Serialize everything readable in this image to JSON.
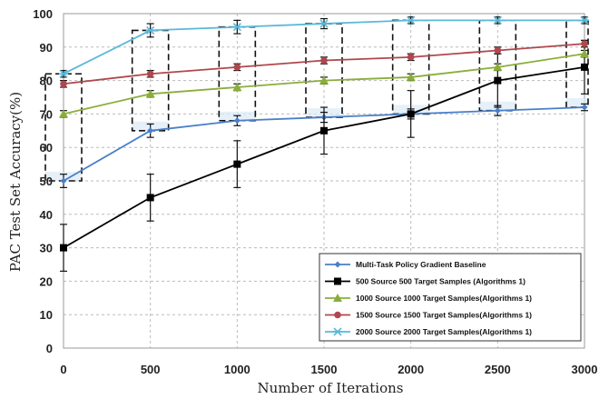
{
  "chart_data": {
    "type": "line",
    "title": "",
    "xlabel": "Number of  Iterations",
    "ylabel": "PAC  Test Set Accuracy(%)",
    "x": [
      0,
      500,
      1000,
      1500,
      2000,
      2500,
      3000
    ],
    "xlim": [
      0,
      3000
    ],
    "ylim": [
      0,
      100
    ],
    "x_ticks": [
      "0",
      "500",
      "1000",
      "1500",
      "2000",
      "2500",
      "3000"
    ],
    "y_ticks": [
      "0",
      "10",
      "20",
      "30",
      "40",
      "50",
      "60",
      "70",
      "80",
      "90",
      "100"
    ],
    "grid": true,
    "legend_position": "bottom-right",
    "series": [
      {
        "name": "Multi-Task Policy Gradient Baseline",
        "color": "#4a7fc8",
        "marker": "diamond",
        "values": [
          50,
          65,
          68,
          69,
          70,
          71,
          72
        ],
        "error": [
          2,
          2,
          1.5,
          1.5,
          1.5,
          1.5,
          1
        ]
      },
      {
        "name": "500 Source 500 Target Samples (Algorithms 1)",
        "color": "#000000",
        "marker": "square",
        "values": [
          30,
          45,
          55,
          65,
          70,
          80,
          84
        ],
        "error": [
          7,
          7,
          7,
          7,
          7,
          8,
          8
        ]
      },
      {
        "name": "1000 Source 1000 Target Samples(Algorithms 1)",
        "color": "#8aae3b",
        "marker": "triangle",
        "values": [
          70,
          76,
          78,
          80,
          81,
          84,
          88
        ],
        "error": [
          1,
          1,
          1,
          1,
          1,
          1,
          1
        ]
      },
      {
        "name": "1500 Source 1500 Target Samples(Algorithms 1)",
        "color": "#b1474e",
        "marker": "circle",
        "values": [
          79,
          82,
          84,
          86,
          87,
          89,
          91
        ],
        "error": [
          1,
          1,
          1,
          1,
          1,
          1,
          1
        ]
      },
      {
        "name": "2000 Source 2000 Target Samples(Algorithms 1)",
        "color": "#5ab8d8",
        "marker": "star",
        "values": [
          82,
          95,
          96,
          97,
          98,
          98,
          98
        ],
        "error": [
          1,
          2,
          2,
          1.5,
          1,
          1,
          1
        ]
      }
    ],
    "dashed_boxes": [
      {
        "x": 0,
        "y_low": 50,
        "y_high": 82
      },
      {
        "x": 500,
        "y_low": 65,
        "y_high": 95
      },
      {
        "x": 1000,
        "y_low": 68,
        "y_high": 96
      },
      {
        "x": 1500,
        "y_low": 69,
        "y_high": 97
      },
      {
        "x": 2000,
        "y_low": 70,
        "y_high": 98
      },
      {
        "x": 2500,
        "y_low": 71,
        "y_high": 98
      },
      {
        "x": 3000,
        "y_low": 72,
        "y_high": 98
      }
    ]
  }
}
